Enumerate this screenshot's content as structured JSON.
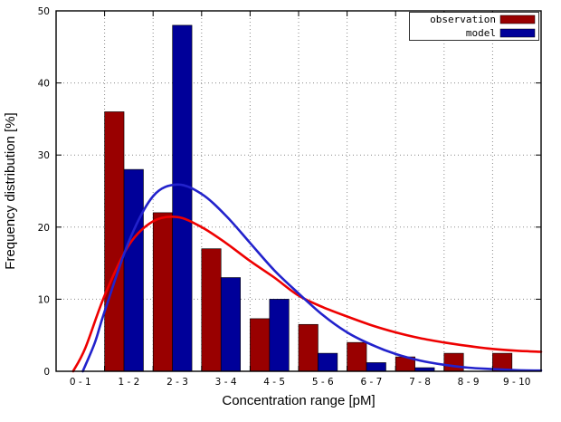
{
  "figure": {
    "background": "#ffffff"
  },
  "chart_data": {
    "type": "bar",
    "title": "",
    "xlabel": "Concentration range [pM]",
    "ylabel": "Frequency distribution [%]",
    "xlim": [
      0,
      10
    ],
    "ylim": [
      0,
      50
    ],
    "yticks": [
      0,
      10,
      20,
      30,
      40,
      50
    ],
    "grid": true,
    "legend_position": "top-right",
    "categories": [
      "0 - 1",
      "1 - 2",
      "2 - 3",
      "3 - 4",
      "4 - 5",
      "5 - 6",
      "6 - 7",
      "7 - 8",
      "8 - 9",
      "9 - 10"
    ],
    "series": [
      {
        "name": "observation",
        "color": "#990000",
        "values": [
          0,
          36,
          22,
          17,
          7.3,
          6.5,
          4,
          2,
          2.5,
          2.5
        ]
      },
      {
        "name": "model",
        "color": "#000099",
        "values": [
          0,
          28,
          48,
          13,
          10,
          2.5,
          1.2,
          0.5,
          0,
          0
        ]
      }
    ],
    "curves": [
      {
        "name": "observation-curve",
        "color": "#ee0000",
        "points": [
          [
            0.35,
            0
          ],
          [
            0.6,
            3.2
          ],
          [
            1.0,
            10.5
          ],
          [
            1.5,
            17.5
          ],
          [
            2.0,
            20.8
          ],
          [
            2.5,
            21.4
          ],
          [
            3.0,
            20.0
          ],
          [
            3.5,
            17.8
          ],
          [
            4.0,
            15.3
          ],
          [
            4.5,
            13.0
          ],
          [
            5.0,
            10.5
          ],
          [
            5.5,
            8.9
          ],
          [
            6.0,
            7.6
          ],
          [
            6.5,
            6.4
          ],
          [
            7.0,
            5.4
          ],
          [
            7.5,
            4.6
          ],
          [
            8.0,
            4.0
          ],
          [
            8.5,
            3.5
          ],
          [
            9.0,
            3.1
          ],
          [
            9.5,
            2.85
          ],
          [
            10.0,
            2.7
          ]
        ]
      },
      {
        "name": "model-curve",
        "color": "#2222cc",
        "points": [
          [
            0.55,
            0
          ],
          [
            0.8,
            4.0
          ],
          [
            1.0,
            8.3
          ],
          [
            1.5,
            18.0
          ],
          [
            2.0,
            24.3
          ],
          [
            2.5,
            25.9
          ],
          [
            3.0,
            24.6
          ],
          [
            3.5,
            21.6
          ],
          [
            4.0,
            17.8
          ],
          [
            4.5,
            14.0
          ],
          [
            5.0,
            10.8
          ],
          [
            5.5,
            7.8
          ],
          [
            6.0,
            5.4
          ],
          [
            6.5,
            3.7
          ],
          [
            7.0,
            2.4
          ],
          [
            7.5,
            1.5
          ],
          [
            8.0,
            0.9
          ],
          [
            8.5,
            0.5
          ],
          [
            9.0,
            0.3
          ],
          [
            9.5,
            0.15
          ],
          [
            10.0,
            0.1
          ]
        ]
      }
    ]
  }
}
